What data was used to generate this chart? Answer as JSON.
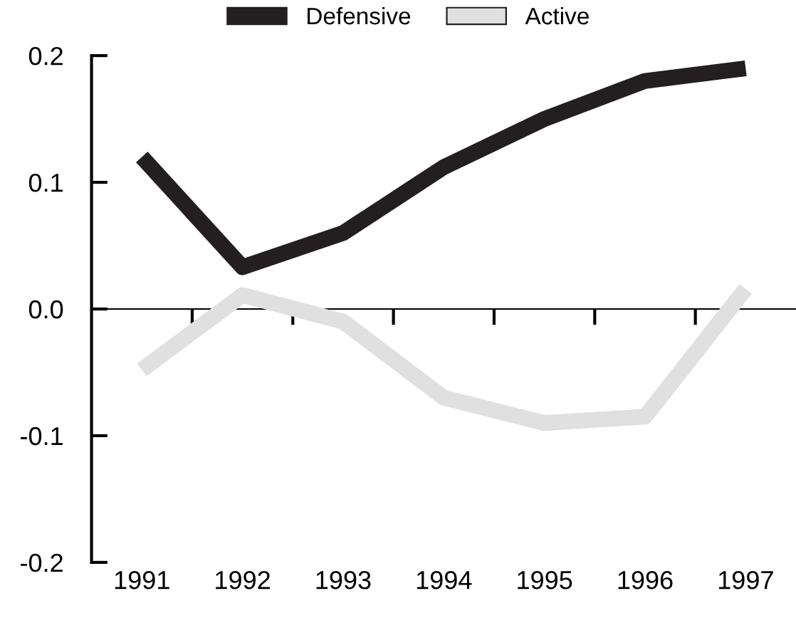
{
  "chart_data": {
    "type": "line",
    "categories": [
      "1991",
      "1992",
      "1993",
      "1994",
      "1995",
      "1996",
      "1997"
    ],
    "series": [
      {
        "name": "Defensive",
        "color": "#231f20",
        "values": [
          0.12,
          0.033,
          0.06,
          0.112,
          0.15,
          0.18,
          0.19
        ]
      },
      {
        "name": "Active",
        "color": "#e0e0e0",
        "values": [
          -0.048,
          0.011,
          -0.01,
          -0.07,
          -0.09,
          -0.085,
          0.016
        ]
      }
    ],
    "ylim": [
      -0.2,
      0.2
    ],
    "yticks": [
      0.2,
      0.1,
      {
        "value": 0,
        "label": "0.0"
      },
      -0.1,
      -0.2
    ],
    "ref_lines": [
      {
        "axis": "y",
        "value": 0
      }
    ],
    "legend": "top",
    "grid": false,
    "marker": "none",
    "line_style": "solid"
  }
}
